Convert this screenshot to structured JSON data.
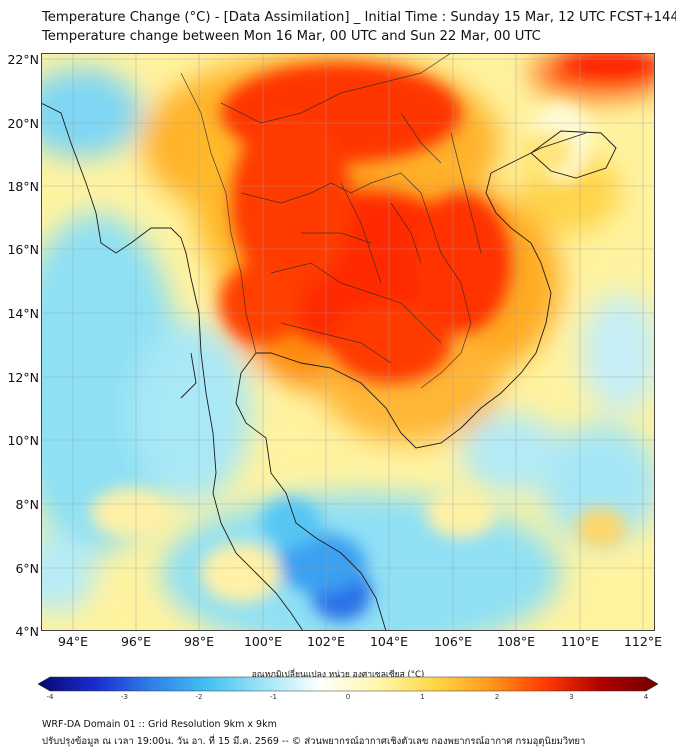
{
  "title_line1": "Temperature Change (°C) - [Data Assimilation] _ Initial Time : Sunday 15 Mar, 12 UTC FCST+144",
  "title_line2": "Temperature change between Mon 16 Mar, 00 UTC and Sun 22 Mar, 00 UTC",
  "map": {
    "lat_labels": [
      "22°N",
      "20°N",
      "18°N",
      "16°N",
      "14°N",
      "12°N",
      "10°N",
      "8°N",
      "6°N",
      "4°N"
    ],
    "lon_labels": [
      "94°E",
      "96°E",
      "98°E",
      "100°E",
      "102°E",
      "104°E",
      "106°E",
      "108°E",
      "110°E",
      "112°E"
    ],
    "lon_range": [
      93,
      112.5
    ],
    "lat_range": [
      4,
      22.2
    ]
  },
  "colorbar": {
    "title": "อุณหภูมิเปลี่ยนแปลง หน่วย องศาเซลเซียส (°C)",
    "tick_labels": [
      "-4",
      "-3",
      "-2",
      "-1",
      "0",
      "1",
      "2",
      "3",
      "4"
    ],
    "min": -4,
    "max": 4,
    "stops": [
      "#08086e",
      "#1a2ad0",
      "#2f7ee8",
      "#43c0f2",
      "#9fe4f6",
      "#ffffff",
      "#fff8b0",
      "#ffd84a",
      "#ff9a1c",
      "#ff3a00",
      "#b00000",
      "#6e0000"
    ]
  },
  "footer": {
    "line1": "WRF-DA Domain 01 :: Grid Resolution 9km x 9km",
    "line2": "ปรับปรุงข้อมูล ณ เวลา 19:00น. วัน อา. ที่ 15 มี.ค. 2569 -- © ส่วนพยากรณ์อากาศเชิงตัวเลข กองพยากรณ์อากาศ กรมอุตุนิยมวิทยา"
  }
}
